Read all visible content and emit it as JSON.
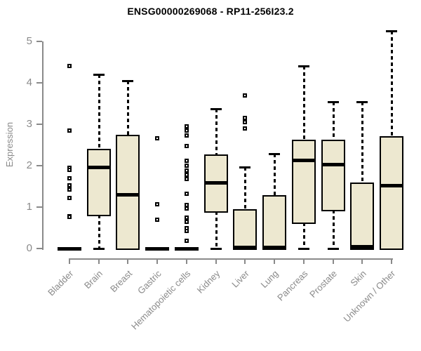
{
  "chart_data": {
    "type": "boxplot",
    "title": "ENSG00000269068 - RP11-256I23.2",
    "ylabel": "Expression",
    "xlabel": "",
    "ylim": [
      0,
      5
    ],
    "yticks": [
      0,
      1,
      2,
      3,
      4,
      5
    ],
    "grid": false,
    "legend": false,
    "categories": [
      "Bladder",
      "Brain",
      "Breast",
      "Gastric",
      "Hematopoietic cells",
      "Kidney",
      "Liver",
      "Lung",
      "Pancreas",
      "Prostate",
      "Skin",
      "Unknown / Other"
    ],
    "boxes": [
      {
        "category": "Bladder",
        "whisker_low": 0,
        "q1": 0,
        "median": 0,
        "q3": 0,
        "whisker_high": 0,
        "outliers": [
          4.4,
          2.85,
          1.95,
          1.9,
          1.7,
          1.53,
          1.42,
          1.22,
          0.78,
          0.76
        ]
      },
      {
        "category": "Brain",
        "whisker_low": 0,
        "q1": 0.82,
        "median": 1.95,
        "q3": 2.38,
        "whisker_high": 4.2,
        "outliers": []
      },
      {
        "category": "Breast",
        "whisker_low": 0,
        "q1": 0,
        "median": 1.3,
        "q3": 2.72,
        "whisker_high": 4.05,
        "outliers": []
      },
      {
        "category": "Gastric",
        "whisker_low": 0,
        "q1": 0,
        "median": 0,
        "q3": 0,
        "whisker_high": 0,
        "outliers": [
          2.66,
          1.07,
          0.69
        ]
      },
      {
        "category": "Hematopoietic cells",
        "whisker_low": 0,
        "q1": 0,
        "median": 0,
        "q3": 0,
        "whisker_high": 0,
        "outliers": [
          2.95,
          2.85,
          2.73,
          2.47,
          2.12,
          2.0,
          1.88,
          1.78,
          1.68,
          1.32,
          1.05,
          0.97,
          0.75,
          0.65,
          0.49,
          0.42,
          0.19
        ]
      },
      {
        "category": "Kidney",
        "whisker_low": 0,
        "q1": 0.9,
        "median": 1.58,
        "q3": 2.24,
        "whisker_high": 3.37,
        "outliers": []
      },
      {
        "category": "Liver",
        "whisker_low": 0,
        "q1": 0,
        "median": 0.03,
        "q3": 0.92,
        "whisker_high": 1.97,
        "outliers": [
          3.7,
          3.15,
          3.05,
          2.9
        ]
      },
      {
        "category": "Lung",
        "whisker_low": 0,
        "q1": 0,
        "median": 0.03,
        "q3": 1.26,
        "whisker_high": 2.28,
        "outliers": []
      },
      {
        "category": "Pancreas",
        "whisker_low": 0,
        "q1": 0.63,
        "median": 2.13,
        "q3": 2.6,
        "whisker_high": 4.4,
        "outliers": []
      },
      {
        "category": "Prostate",
        "whisker_low": 0,
        "q1": 0.93,
        "median": 2.03,
        "q3": 2.6,
        "whisker_high": 3.55,
        "outliers": []
      },
      {
        "category": "Skin",
        "whisker_low": 0,
        "q1": 0,
        "median": 0.04,
        "q3": 1.56,
        "whisker_high": 3.55,
        "outliers": []
      },
      {
        "category": "Unknown / Other",
        "whisker_low": 0,
        "q1": 0,
        "median": 1.52,
        "q3": 2.68,
        "whisker_high": 5.25,
        "outliers": []
      }
    ],
    "colors": {
      "box_fill": "#EDE8D0",
      "box_border": "#000000",
      "median": "#000000",
      "whisker": "#000000",
      "outlier_border": "#000000",
      "outlier_fill": "#FFFFFF",
      "axis": "#8A8A8A",
      "tick_label": "#8A8A8A",
      "title": "#000000",
      "background": "#FFFFFF"
    }
  }
}
